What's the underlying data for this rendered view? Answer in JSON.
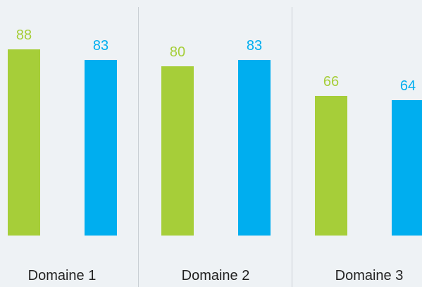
{
  "chart_data": {
    "type": "bar",
    "categories": [
      "Domaine 1",
      "Domaine 2",
      "Domaine 3"
    ],
    "series": [
      {
        "color": "#a6ce39",
        "values": [
          88,
          80,
          66
        ]
      },
      {
        "color": "#00aeef",
        "values": [
          83,
          83,
          64
        ]
      }
    ]
  }
}
